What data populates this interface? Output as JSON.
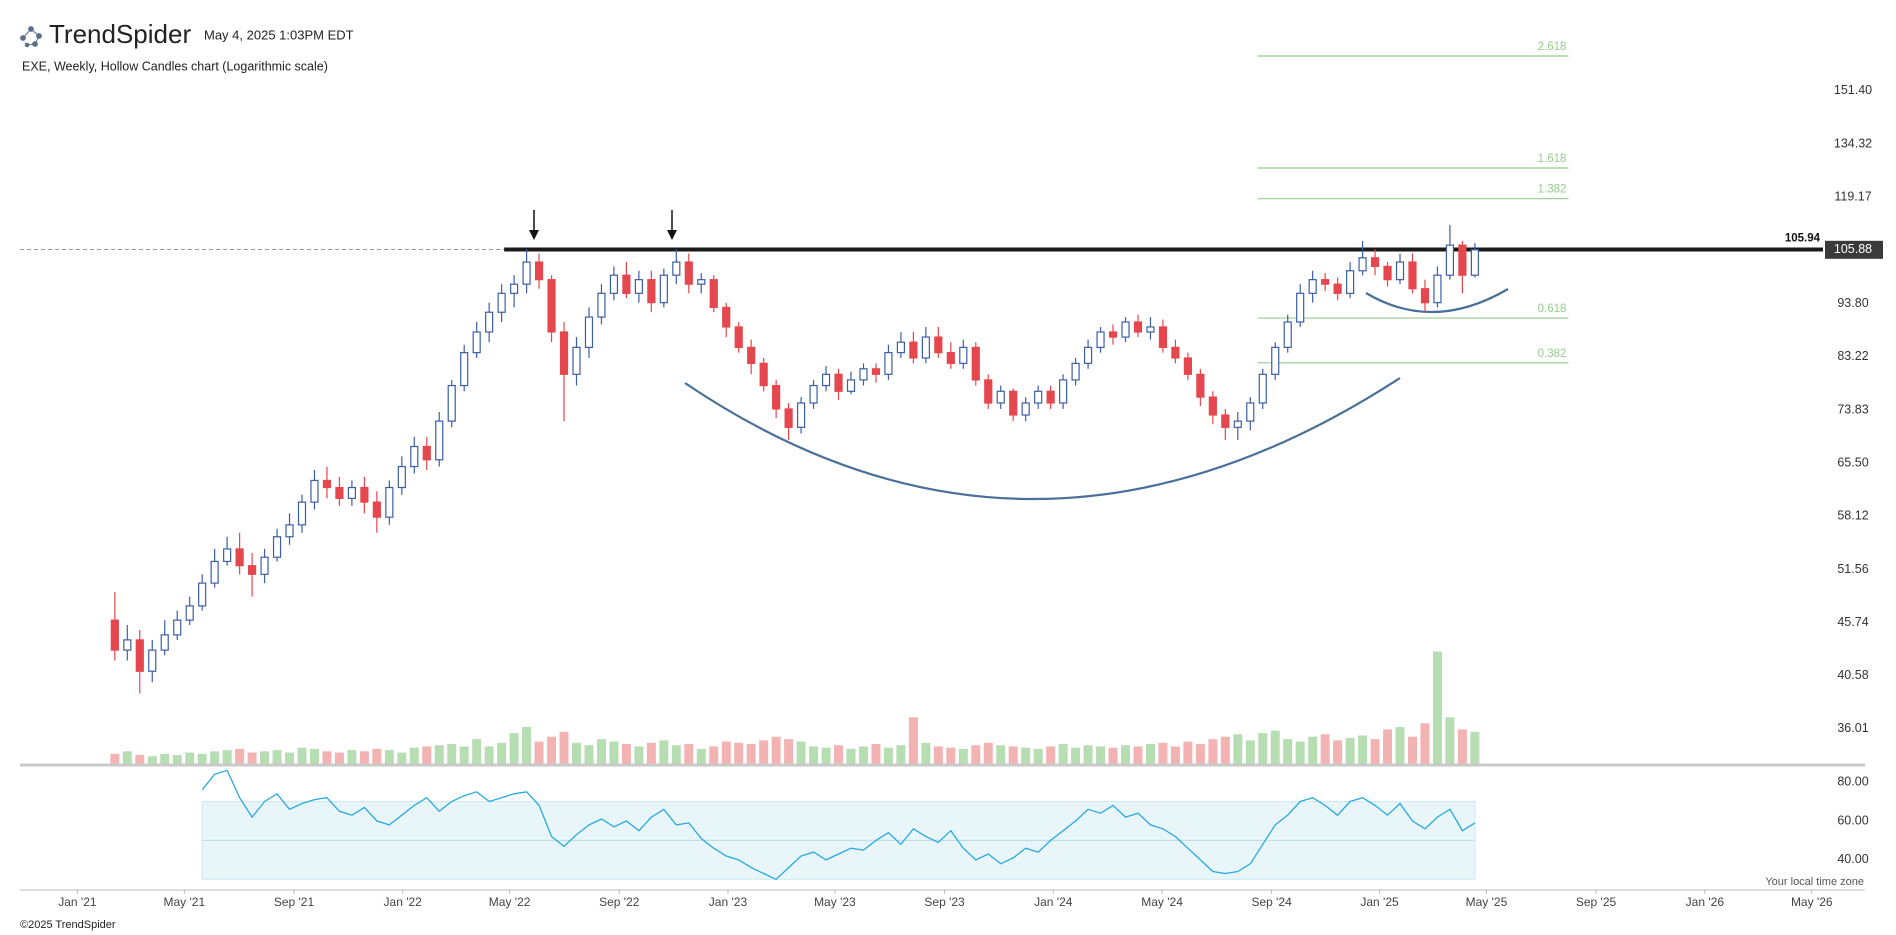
{
  "header": {
    "brand": "TrendSpider",
    "timestamp": "May 4, 2025 1:03PM EDT"
  },
  "footer": {
    "copyright": "©2025 TrendSpider",
    "timezone_note": "Your local time zone"
  },
  "chart_data": {
    "type": "candlestick",
    "title": "EXE, Weekly, Hollow Candles chart (Logarithmic scale)",
    "log_scale": true,
    "up_color": "#3c5ea8",
    "down_color": "#e5474e",
    "volume_up_color": "#b7ddb2",
    "volume_down_color": "#f4b3b3",
    "x": [
      3,
      4,
      5,
      6,
      7,
      8,
      9,
      10,
      11,
      12,
      13,
      14,
      15,
      16,
      17,
      18,
      19,
      20,
      21,
      22,
      23,
      24,
      25,
      26,
      27,
      28,
      29,
      30,
      31,
      32,
      33,
      34,
      35,
      36,
      37,
      38,
      39,
      40,
      41,
      42,
      43,
      44,
      45,
      46,
      47,
      48,
      49,
      50,
      51,
      52,
      53,
      54,
      55,
      56,
      57,
      58,
      59,
      60,
      61,
      62,
      63,
      64,
      65,
      66,
      67,
      68,
      69,
      70,
      71,
      72,
      73,
      74,
      75,
      76,
      77,
      78,
      79,
      80,
      81,
      82,
      83,
      84,
      85,
      86,
      87,
      88,
      89,
      90,
      91,
      92,
      93,
      94,
      95,
      96,
      97,
      98,
      99,
      100,
      101,
      102,
      103,
      104,
      105,
      106,
      107,
      108,
      109,
      110,
      111,
      112
    ],
    "open": [
      46,
      43,
      44,
      41,
      43,
      44.5,
      46,
      47.5,
      50,
      52.5,
      54,
      52,
      51,
      53,
      55.5,
      57,
      60,
      63,
      62,
      60.5,
      62,
      60,
      58,
      62,
      65,
      68,
      66,
      72,
      78,
      84,
      88,
      92,
      96,
      98,
      103,
      99,
      88,
      80,
      85,
      91,
      96,
      100,
      96,
      99,
      94,
      100,
      103,
      98,
      99,
      93,
      89,
      85,
      82,
      78,
      74,
      71,
      75,
      78,
      80,
      77,
      79,
      81,
      80,
      84,
      86,
      83,
      87,
      84,
      82,
      85,
      79,
      75,
      77,
      73,
      75,
      77,
      75,
      79,
      82,
      85,
      88,
      87,
      90,
      88,
      89,
      85,
      83,
      80,
      76,
      73,
      71,
      72,
      75,
      80,
      85,
      90,
      96,
      99,
      98,
      96,
      101,
      104,
      102,
      99,
      103,
      97,
      94,
      100,
      107,
      100
    ],
    "high": [
      49,
      45.5,
      45,
      44,
      46,
      47,
      48.5,
      51,
      54,
      55.5,
      56,
      53.5,
      54,
      56.5,
      58.5,
      61,
      64.5,
      65,
      63.5,
      63,
      63.5,
      61.5,
      63,
      66.5,
      69.5,
      69.5,
      73.5,
      79,
      85.5,
      90,
      94,
      98,
      100,
      106,
      105,
      100,
      90,
      87,
      93,
      98,
      102,
      103,
      101,
      101,
      101.5,
      106,
      105,
      100.5,
      100,
      94,
      90,
      86.5,
      83,
      79,
      75,
      76,
      79,
      81.5,
      81,
      80.5,
      82,
      82,
      85.5,
      88,
      88,
      89,
      89,
      86,
      86.5,
      86,
      80,
      78,
      77.5,
      76,
      78,
      78,
      80,
      83,
      86.5,
      89,
      89.5,
      91,
      91.5,
      91,
      90.5,
      86.5,
      84,
      81,
      77,
      74,
      73.5,
      76,
      81,
      86,
      91.5,
      98,
      101,
      100.5,
      99.5,
      103,
      108,
      106,
      103,
      105,
      105,
      99,
      102,
      112,
      108,
      107.5
    ],
    "low": [
      42,
      42,
      39,
      40,
      42.5,
      44,
      45.5,
      47,
      49.5,
      52,
      51,
      48.5,
      50,
      52.5,
      54.5,
      56,
      59,
      60.5,
      59.5,
      59.5,
      58.5,
      56,
      57,
      61,
      64,
      64.5,
      65,
      71,
      77,
      83,
      86,
      90,
      93,
      96,
      97,
      86,
      72,
      78,
      83,
      89.5,
      94.5,
      95,
      94,
      92,
      93,
      98,
      96,
      96,
      92,
      87,
      84,
      80,
      77,
      72.5,
      69,
      70,
      74,
      77,
      75.5,
      76.5,
      78,
      78.5,
      79,
      83,
      82,
      82,
      83,
      81,
      81,
      78,
      74,
      74,
      72,
      72,
      74,
      74,
      74,
      78,
      81,
      84,
      85.5,
      86,
      87,
      86.5,
      84,
      82,
      79,
      74.5,
      71.5,
      69,
      69,
      70.5,
      74,
      79,
      84,
      89,
      94,
      96.5,
      94.5,
      95,
      100,
      100,
      97.5,
      98,
      96,
      92,
      93,
      99,
      96,
      99.5
    ],
    "close": [
      43,
      44,
      41,
      43,
      44.5,
      46,
      47.5,
      50,
      52.5,
      54,
      52,
      51,
      53,
      55.5,
      57,
      60,
      63,
      62,
      60.5,
      62,
      60,
      58,
      62,
      65,
      68,
      66,
      72,
      78,
      84,
      88,
      92,
      96,
      98,
      103,
      99,
      88,
      80,
      85,
      91,
      96,
      100,
      96,
      99,
      94,
      100,
      103,
      98,
      99,
      93,
      89,
      85,
      82,
      78,
      74,
      71,
      75,
      78,
      80,
      77,
      79,
      81,
      80,
      84,
      86,
      83,
      87,
      84,
      82,
      85,
      79,
      75,
      77,
      73,
      75,
      77,
      75,
      79,
      82,
      85,
      88,
      87,
      90,
      88,
      89,
      85,
      83,
      80,
      76,
      73,
      71,
      72,
      75,
      80,
      85,
      90,
      96,
      99,
      98,
      96,
      101,
      104,
      102,
      99,
      103,
      97,
      94,
      100,
      107,
      100,
      105.88
    ],
    "volume": [
      8,
      10,
      7,
      6,
      8,
      7,
      9,
      8,
      10,
      11,
      12,
      9,
      10,
      11,
      9,
      13,
      12,
      10,
      9,
      11,
      10,
      12,
      11,
      9,
      13,
      14,
      15,
      16,
      14,
      20,
      14,
      17,
      25,
      30,
      18,
      22,
      26,
      17,
      15,
      20,
      18,
      16,
      14,
      17,
      19,
      15,
      16,
      12,
      14,
      18,
      17,
      16,
      19,
      22,
      20,
      18,
      14,
      13,
      15,
      12,
      14,
      16,
      13,
      15,
      38,
      17,
      14,
      13,
      12,
      15,
      17,
      15,
      14,
      13,
      12,
      14,
      16,
      13,
      15,
      14,
      13,
      15,
      14,
      16,
      17,
      14,
      18,
      16,
      20,
      22,
      24,
      19,
      25,
      27,
      20,
      18,
      22,
      24,
      19,
      21,
      23,
      20,
      28,
      30,
      22,
      33,
      92,
      38,
      28,
      26
    ],
    "rsi": [
      null,
      null,
      null,
      null,
      null,
      null,
      null,
      76,
      84,
      86,
      72,
      62,
      70,
      74,
      66,
      69,
      71,
      72,
      65,
      63,
      67,
      60,
      58,
      63,
      68,
      72,
      65,
      70,
      73,
      75,
      70,
      72,
      74,
      75,
      68,
      52,
      47,
      53,
      58,
      61,
      57,
      60,
      55,
      62,
      66,
      58,
      59,
      51,
      46,
      42,
      40,
      36,
      33,
      30,
      36,
      42,
      44,
      40,
      43,
      46,
      45,
      50,
      54,
      48,
      56,
      52,
      49,
      55,
      46,
      40,
      43,
      38,
      41,
      46,
      44,
      50,
      55,
      60,
      66,
      64,
      68,
      62,
      64,
      58,
      56,
      52,
      46,
      40,
      34,
      33,
      34,
      38,
      48,
      58,
      63,
      70,
      72,
      68,
      63,
      70,
      72,
      68,
      63,
      69,
      60,
      56,
      62,
      66,
      55,
      59
    ],
    "rsi_color": "#2aa8e0",
    "rsi_band": [
      30,
      70
    ],
    "rsi_mid": 50,
    "rsi_band_color": "#e8f6fa",
    "xlim": [
      -4.6,
      139.9
    ],
    "xticks": [
      {
        "value": 0,
        "label": "Jan '21"
      },
      {
        "value": 8.57,
        "label": "May '21"
      },
      {
        "value": 17.36,
        "label": "Sep '21"
      },
      {
        "value": 26.07,
        "label": "Jan '22"
      },
      {
        "value": 34.64,
        "label": "May '22"
      },
      {
        "value": 43.43,
        "label": "Sep '22"
      },
      {
        "value": 52.14,
        "label": "Jan '23"
      },
      {
        "value": 60.71,
        "label": "May '23"
      },
      {
        "value": 69.5,
        "label": "Sep '23"
      },
      {
        "value": 78.21,
        "label": "Jan '24"
      },
      {
        "value": 86.93,
        "label": "May '24"
      },
      {
        "value": 95.71,
        "label": "Sep '24"
      },
      {
        "value": 104.36,
        "label": "Jan '25"
      },
      {
        "value": 112.93,
        "label": "May '25"
      },
      {
        "value": 121.71,
        "label": "Sep '25"
      },
      {
        "value": 130.43,
        "label": "Jan '26"
      },
      {
        "value": 139,
        "label": "May '26"
      }
    ],
    "ylim": [
      33.2,
      169.8
    ],
    "yticks": [
      {
        "value": 151.4,
        "label": "151.40"
      },
      134.32,
      119.17,
      {
        "value": 93.8,
        "label": "93.80"
      },
      83.22,
      73.83,
      {
        "value": 65.5,
        "label": "65.50"
      },
      58.12,
      51.56,
      45.74,
      40.58,
      36.01
    ],
    "rsi_ylim": [
      24.5,
      88.8
    ],
    "rsi_ticks": [
      {
        "value": 80,
        "label": "80.00"
      },
      {
        "value": 60,
        "label": "60.00"
      },
      {
        "value": 40,
        "label": "40.00"
      }
    ],
    "fib_x": [
      94.6,
      119.5
    ],
    "fib_color": "#94cc8c",
    "fib_levels": [
      {
        "ratio": 2.618,
        "price": 163.8
      },
      {
        "ratio": 1.618,
        "price": 127.3
      },
      {
        "ratio": 1.382,
        "price": 118.8
      },
      {
        "ratio": 0.618,
        "price": 90.8
      },
      {
        "ratio": 0.382,
        "price": 82.1
      }
    ],
    "resistance": {
      "value": 105.94,
      "from": 34.2
    }
  }
}
